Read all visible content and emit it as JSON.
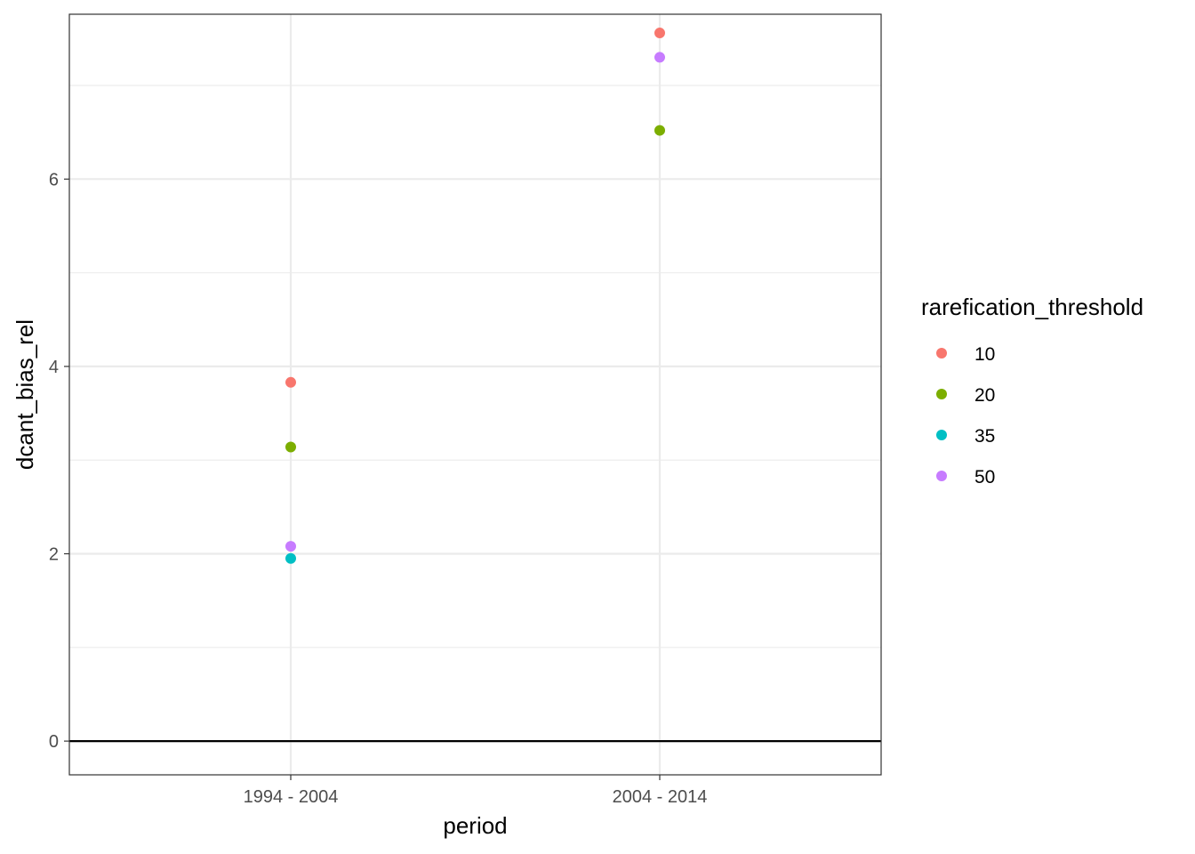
{
  "chart_data": {
    "type": "scatter",
    "title": "",
    "xlabel": "period",
    "ylabel": "dcant_bias_rel",
    "categories": [
      "1994 - 2004",
      "2004 - 2014"
    ],
    "ylim": [
      -0.36,
      7.76
    ],
    "yticks": [
      0,
      2,
      4,
      6
    ],
    "ytick_labels": [
      "0",
      "2",
      "4",
      "6"
    ],
    "grid": true,
    "hline_y": 0,
    "legend": {
      "title": "rarefication_threshold",
      "position": "right"
    },
    "series": [
      {
        "name": "10",
        "color": "#F8766D",
        "values": [
          3.83,
          7.56
        ]
      },
      {
        "name": "20",
        "color": "#7CAE00",
        "values": [
          3.14,
          6.52
        ]
      },
      {
        "name": "35",
        "color": "#00BFC4",
        "values": [
          1.95,
          null
        ]
      },
      {
        "name": "50",
        "color": "#C77CFF",
        "values": [
          2.08,
          7.3
        ]
      }
    ]
  }
}
